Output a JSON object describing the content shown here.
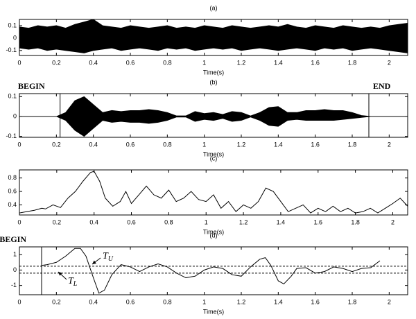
{
  "chart_data": [
    {
      "type": "waveform",
      "title": "(a)",
      "xlabel": "Time(s)",
      "xlim": [
        0,
        2.1
      ],
      "xticks": [
        0,
        0.2,
        0.4,
        0.6,
        0.8,
        1,
        1.2,
        1.4,
        1.6,
        1.8,
        2
      ],
      "ylim": [
        -0.14,
        0.15
      ],
      "yticks": [
        0.1,
        0,
        -0.1
      ],
      "color": "#000000",
      "x": [
        0,
        0.05,
        0.1,
        0.15,
        0.2,
        0.25,
        0.3,
        0.35,
        0.4,
        0.45,
        0.5,
        0.55,
        0.6,
        0.65,
        0.7,
        0.75,
        0.8,
        0.85,
        0.9,
        0.95,
        1,
        1.05,
        1.1,
        1.15,
        1.2,
        1.25,
        1.3,
        1.35,
        1.4,
        1.45,
        1.5,
        1.55,
        1.6,
        1.65,
        1.7,
        1.75,
        1.8,
        1.85,
        1.9,
        1.95,
        2,
        2.05,
        2.1
      ],
      "upper": [
        0.09,
        0.08,
        0.1,
        0.09,
        0.1,
        0.08,
        0.11,
        0.13,
        0.15,
        0.1,
        0.09,
        0.08,
        0.1,
        0.09,
        0.08,
        0.09,
        0.1,
        0.08,
        0.09,
        0.08,
        0.1,
        0.09,
        0.08,
        0.1,
        0.09,
        0.08,
        0.09,
        0.1,
        0.09,
        0.11,
        0.09,
        0.08,
        0.1,
        0.09,
        0.08,
        0.1,
        0.09,
        0.08,
        0.09,
        0.08,
        0.1,
        0.11,
        0.12
      ],
      "lower": [
        -0.08,
        -0.09,
        -0.08,
        -0.1,
        -0.09,
        -0.1,
        -0.11,
        -0.12,
        -0.1,
        -0.09,
        -0.08,
        -0.1,
        -0.09,
        -0.08,
        -0.09,
        -0.1,
        -0.08,
        -0.09,
        -0.08,
        -0.1,
        -0.09,
        -0.08,
        -0.09,
        -0.08,
        -0.1,
        -0.09,
        -0.08,
        -0.09,
        -0.1,
        -0.09,
        -0.08,
        -0.09,
        -0.1,
        -0.08,
        -0.09,
        -0.08,
        -0.1,
        -0.09,
        -0.08,
        -0.09,
        -0.1,
        -0.11,
        -0.12
      ]
    },
    {
      "type": "waveform",
      "title": "(b)",
      "xlabel": "Time(s)",
      "xlim": [
        0,
        2.1
      ],
      "xticks": [
        0,
        0.2,
        0.4,
        0.6,
        0.8,
        1,
        1.2,
        1.4,
        1.6,
        1.8,
        2
      ],
      "ylim": [
        -0.105,
        0.115
      ],
      "yticks": [
        0.1,
        0,
        -0.1
      ],
      "color": "#000000",
      "markers": [
        {
          "label": "BEGIN",
          "x": 0.22
        },
        {
          "label": "END",
          "x": 1.89
        }
      ],
      "x": [
        0,
        0.05,
        0.1,
        0.15,
        0.2,
        0.25,
        0.3,
        0.35,
        0.4,
        0.45,
        0.5,
        0.55,
        0.6,
        0.65,
        0.7,
        0.75,
        0.8,
        0.85,
        0.9,
        0.95,
        1,
        1.05,
        1.1,
        1.15,
        1.2,
        1.25,
        1.3,
        1.35,
        1.4,
        1.45,
        1.5,
        1.55,
        1.6,
        1.65,
        1.7,
        1.75,
        1.8,
        1.85,
        1.9,
        1.95,
        2,
        2.05,
        2.1
      ],
      "upper": [
        0,
        0,
        0,
        0,
        0,
        0.02,
        0.08,
        0.1,
        0.06,
        0.02,
        0.03,
        0.025,
        0.03,
        0.03,
        0.035,
        0.03,
        0.02,
        0.003,
        0.003,
        0.025,
        0.015,
        0.02,
        0.01,
        0.025,
        0.02,
        0.003,
        0.02,
        0.045,
        0.05,
        0.02,
        0.02,
        0.03,
        0.03,
        0.035,
        0.03,
        0.03,
        0.02,
        0.005,
        0,
        0,
        0,
        0,
        0
      ],
      "lower": [
        0,
        0,
        0,
        0,
        0,
        -0.02,
        -0.07,
        -0.1,
        -0.06,
        -0.02,
        -0.03,
        -0.025,
        -0.03,
        -0.03,
        -0.035,
        -0.03,
        -0.02,
        -0.003,
        -0.003,
        -0.025,
        -0.015,
        -0.02,
        -0.01,
        -0.025,
        -0.02,
        -0.003,
        -0.02,
        -0.045,
        -0.05,
        -0.02,
        -0.015,
        -0.02,
        -0.02,
        -0.02,
        -0.02,
        -0.015,
        -0.01,
        -0.005,
        0,
        0,
        0,
        0,
        0
      ]
    },
    {
      "type": "line",
      "title": "(c)",
      "xlabel": "Time(s)",
      "xlim": [
        0,
        2.08
      ],
      "xticks": [
        0,
        0.2,
        0.4,
        0.6,
        0.8,
        1,
        1.2,
        1.4,
        1.6,
        1.8,
        2
      ],
      "ylim": [
        0.25,
        0.92
      ],
      "yticks": [
        0.8,
        0.6,
        0.4
      ],
      "color": "#000000",
      "x": [
        0,
        0.04,
        0.08,
        0.12,
        0.14,
        0.18,
        0.22,
        0.26,
        0.3,
        0.34,
        0.38,
        0.4,
        0.43,
        0.46,
        0.5,
        0.54,
        0.57,
        0.6,
        0.64,
        0.68,
        0.72,
        0.76,
        0.8,
        0.84,
        0.88,
        0.92,
        0.96,
        1,
        1.04,
        1.08,
        1.12,
        1.16,
        1.2,
        1.24,
        1.28,
        1.32,
        1.36,
        1.4,
        1.44,
        1.48,
        1.52,
        1.56,
        1.6,
        1.64,
        1.68,
        1.72,
        1.76,
        1.8,
        1.84,
        1.88,
        1.92,
        1.96,
        2,
        2.04,
        2.08
      ],
      "values": [
        0.28,
        0.3,
        0.32,
        0.35,
        0.34,
        0.4,
        0.36,
        0.5,
        0.6,
        0.75,
        0.88,
        0.9,
        0.75,
        0.5,
        0.38,
        0.45,
        0.6,
        0.42,
        0.55,
        0.68,
        0.55,
        0.5,
        0.62,
        0.45,
        0.5,
        0.6,
        0.48,
        0.45,
        0.55,
        0.35,
        0.45,
        0.3,
        0.4,
        0.35,
        0.45,
        0.65,
        0.6,
        0.45,
        0.3,
        0.35,
        0.4,
        0.28,
        0.35,
        0.3,
        0.38,
        0.3,
        0.35,
        0.28,
        0.3,
        0.35,
        0.28,
        0.35,
        0.42,
        0.5,
        0.38
      ]
    },
    {
      "type": "line",
      "title": "(d)",
      "xlabel": "Time(s)",
      "xlim": [
        0,
        2.1
      ],
      "xticks": [
        0,
        0.2,
        0.4,
        0.6,
        0.8,
        1,
        1.2,
        1.4,
        1.6,
        1.8,
        2
      ],
      "ylim": [
        -1.6,
        1.5
      ],
      "yticks": [
        1,
        0,
        -1
      ],
      "color": "#000000",
      "markers": [
        {
          "label": "BEGIN",
          "x": 0.12
        }
      ],
      "thresholds": [
        {
          "value": 0.25,
          "main": "T",
          "sub": "U"
        },
        {
          "value": -0.2,
          "main": "T",
          "sub": "L"
        }
      ],
      "x": [
        0.12,
        0.15,
        0.2,
        0.25,
        0.3,
        0.33,
        0.36,
        0.4,
        0.43,
        0.46,
        0.5,
        0.55,
        0.6,
        0.65,
        0.7,
        0.75,
        0.8,
        0.85,
        0.9,
        0.95,
        1,
        1.05,
        1.1,
        1.15,
        1.2,
        1.25,
        1.3,
        1.33,
        1.36,
        1.4,
        1.43,
        1.47,
        1.5,
        1.55,
        1.6,
        1.65,
        1.7,
        1.75,
        1.8,
        1.85,
        1.9,
        1.95
      ],
      "values": [
        0.3,
        0.35,
        0.5,
        0.9,
        1.4,
        1.4,
        0.9,
        -0.5,
        -1.5,
        -1.3,
        -0.3,
        0.35,
        0.2,
        -0.1,
        0.2,
        0.4,
        0.2,
        -0.2,
        -0.5,
        -0.4,
        0,
        0.2,
        0.1,
        -0.3,
        -0.4,
        0.2,
        0.7,
        0.8,
        0.3,
        -0.7,
        -0.9,
        -0.4,
        0.1,
        0.15,
        -0.2,
        -0.1,
        0.2,
        0.1,
        -0.1,
        0.1,
        0.15,
        0.6
      ]
    }
  ]
}
